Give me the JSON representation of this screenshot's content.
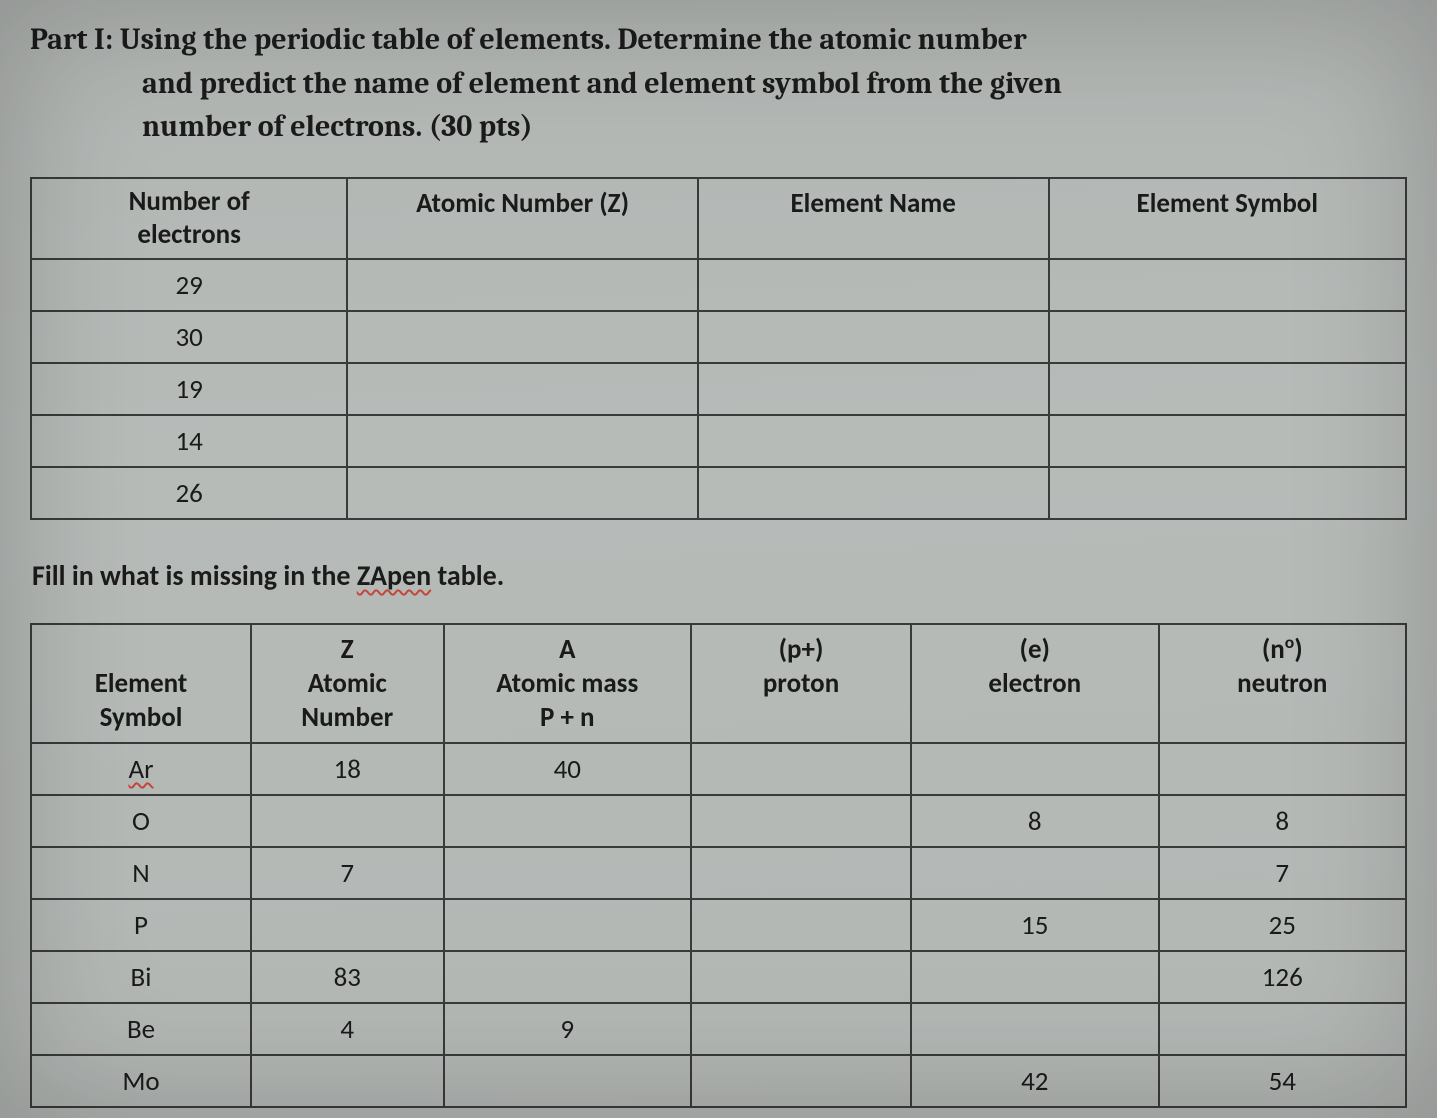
{
  "heading": {
    "line1": "Part I: Using the periodic table of elements. Determine the atomic number",
    "line2": "and predict the name of element and element symbol from the given",
    "line3": "number of electrons. (30 pts)"
  },
  "table1": {
    "headers": {
      "col1_a": "Number of",
      "col1_b": "electrons",
      "col2": "Atomic Number (Z)",
      "col3": "Element Name",
      "col4": "Element Symbol"
    },
    "rows": [
      {
        "electrons": "29",
        "z": "",
        "name": "",
        "symbol": ""
      },
      {
        "electrons": "30",
        "z": "",
        "name": "",
        "symbol": ""
      },
      {
        "electrons": "19",
        "z": "",
        "name": "",
        "symbol": ""
      },
      {
        "electrons": "14",
        "z": "",
        "name": "",
        "symbol": ""
      },
      {
        "electrons": "26",
        "z": "",
        "name": "",
        "symbol": ""
      }
    ]
  },
  "subheading": {
    "pre": "Fill in what is missing in the ",
    "wavy": "ZApen",
    "post": " table."
  },
  "table2": {
    "headers": {
      "c1_a": "",
      "c1_b": "Element",
      "c1_c": "Symbol",
      "c2_a": "Z",
      "c2_b": "Atomic",
      "c2_c": "Number",
      "c3_a": "A",
      "c3_b": "Atomic mass",
      "c3_c": "P + n",
      "c4_a": "(p+)",
      "c4_b": "proton",
      "c4_c": "",
      "c5_a": "(e)",
      "c5_b": "electron",
      "c5_c": "",
      "c6_a": "(n",
      "c6_sup": "o",
      "c6_a2": ")",
      "c6_b": "neutron",
      "c6_c": ""
    },
    "rows": [
      {
        "sym": "Ar",
        "wavy": true,
        "z": "18",
        "a": "40",
        "p": "",
        "e": "",
        "n": ""
      },
      {
        "sym": "O",
        "wavy": false,
        "z": "",
        "a": "",
        "p": "",
        "e": "8",
        "n": "8"
      },
      {
        "sym": "N",
        "wavy": false,
        "z": "7",
        "a": "",
        "p": "",
        "e": "",
        "n": "7"
      },
      {
        "sym": "P",
        "wavy": false,
        "z": "",
        "a": "",
        "p": "",
        "e": "15",
        "n": "25"
      },
      {
        "sym": "Bi",
        "wavy": false,
        "z": "83",
        "a": "",
        "p": "",
        "e": "",
        "n": "126"
      },
      {
        "sym": "Be",
        "wavy": false,
        "z": "4",
        "a": "9",
        "p": "",
        "e": "",
        "n": ""
      },
      {
        "sym": "Mo",
        "wavy": false,
        "z": "",
        "a": "",
        "p": "",
        "e": "42",
        "n": "54"
      }
    ]
  },
  "style": {
    "border_color": "#3a3a3a",
    "bg_color": "#b6bab8",
    "text_color": "#1a1a1a",
    "wavy_color": "#c4463a",
    "heading_fontsize": 30,
    "cell_fontsize": 27
  }
}
